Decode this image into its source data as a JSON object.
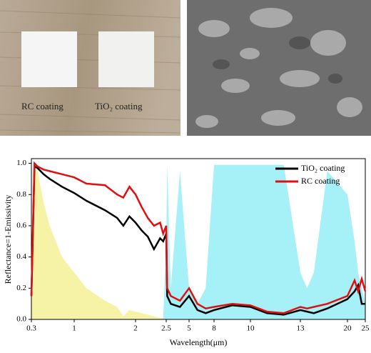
{
  "photo_labels": [
    "RC coating",
    "TiO₂ coating"
  ],
  "chart_data": {
    "type": "line",
    "xlabel": "Wavelength(μm)",
    "ylabel": "Reflectance=1-Emissivity",
    "x": [
      0.3,
      0.35,
      0.4,
      0.5,
      0.6,
      0.8,
      1,
      1.2,
      1.5,
      1.7,
      1.8,
      1.9,
      2,
      2.1,
      2.2,
      2.3,
      2.4,
      2.45,
      2.5,
      2.6,
      3,
      4,
      5,
      6,
      7,
      8,
      9,
      10,
      11,
      12,
      13,
      14,
      15,
      17,
      20,
      22,
      23,
      24,
      25
    ],
    "series": [
      {
        "color": "#f7f3a6",
        "fill": true,
        "values": [
          0.2,
          0.98,
          0.95,
          0.75,
          0.6,
          0.4,
          0.3,
          0.2,
          0.12,
          0.08,
          0.02,
          0.06,
          0.05,
          0.04,
          0.03,
          0.02,
          0.01,
          0.01,
          0,
          0,
          0,
          0,
          0,
          0,
          0,
          0,
          0,
          0,
          0,
          0,
          0,
          0,
          0,
          0,
          0,
          0,
          0,
          0,
          0
        ]
      },
      {
        "color": "#a6f0f7",
        "fill": true,
        "values": [
          0,
          0,
          0,
          0,
          0,
          0,
          0,
          0,
          0,
          0,
          0,
          0,
          0,
          0,
          0,
          0,
          0,
          0,
          0.5,
          0.99,
          0.2,
          0.95,
          0.2,
          0.1,
          0.2,
          0.99,
          0.99,
          0.99,
          0.99,
          0.99,
          0.3,
          0.2,
          0.3,
          0.95,
          0.8,
          0.5,
          0.3,
          0.2,
          0.1
        ]
      },
      {
        "name": "TiO₂ coating",
        "color": "#000000",
        "values": [
          0.15,
          0.98,
          0.97,
          0.93,
          0.9,
          0.85,
          0.81,
          0.76,
          0.7,
          0.65,
          0.6,
          0.66,
          0.62,
          0.57,
          0.53,
          0.45,
          0.52,
          0.5,
          0.55,
          0.15,
          0.1,
          0.08,
          0.15,
          0.06,
          0.04,
          0.06,
          0.09,
          0.08,
          0.04,
          0.03,
          0.06,
          0.05,
          0.04,
          0.07,
          0.13,
          0.18,
          0.22,
          0.1,
          0.1
        ]
      },
      {
        "name": "RC coating",
        "color": "#e01010",
        "values": [
          0.15,
          1.0,
          0.98,
          0.96,
          0.95,
          0.93,
          0.91,
          0.87,
          0.86,
          0.8,
          0.78,
          0.85,
          0.8,
          0.72,
          0.65,
          0.6,
          0.62,
          0.55,
          0.6,
          0.2,
          0.15,
          0.12,
          0.2,
          0.1,
          0.07,
          0.08,
          0.1,
          0.09,
          0.05,
          0.04,
          0.08,
          0.07,
          0.08,
          0.1,
          0.15,
          0.25,
          0.18,
          0.26,
          0.18
        ]
      }
    ],
    "xlim": [
      0.3,
      25
    ],
    "xticks": [
      0.3,
      1,
      2,
      2.5,
      5,
      8,
      10,
      13,
      20,
      25
    ],
    "ylim": [
      0,
      1.03
    ],
    "yticks": [
      {
        "value": 0,
        "label": "0.0"
      },
      {
        "value": 0.2,
        "label": "0.2"
      },
      {
        "value": 0.4,
        "label": "0.4"
      },
      {
        "value": 0.6,
        "label": "0.6"
      },
      {
        "value": 0.8,
        "label": "0.8"
      },
      {
        "value": 1,
        "label": "1.0"
      }
    ],
    "legend": "upper right"
  }
}
